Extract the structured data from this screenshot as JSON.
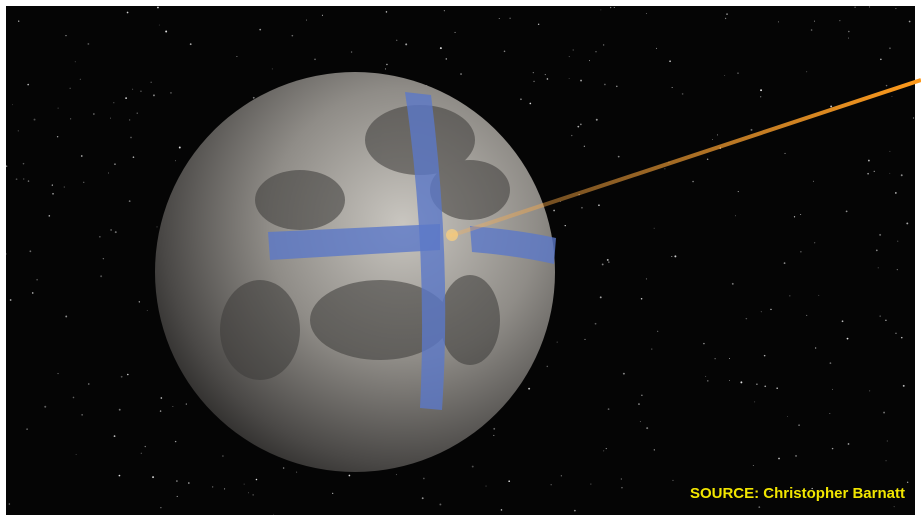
{
  "caption": "SOURCE: Christopher Barnatt"
}
